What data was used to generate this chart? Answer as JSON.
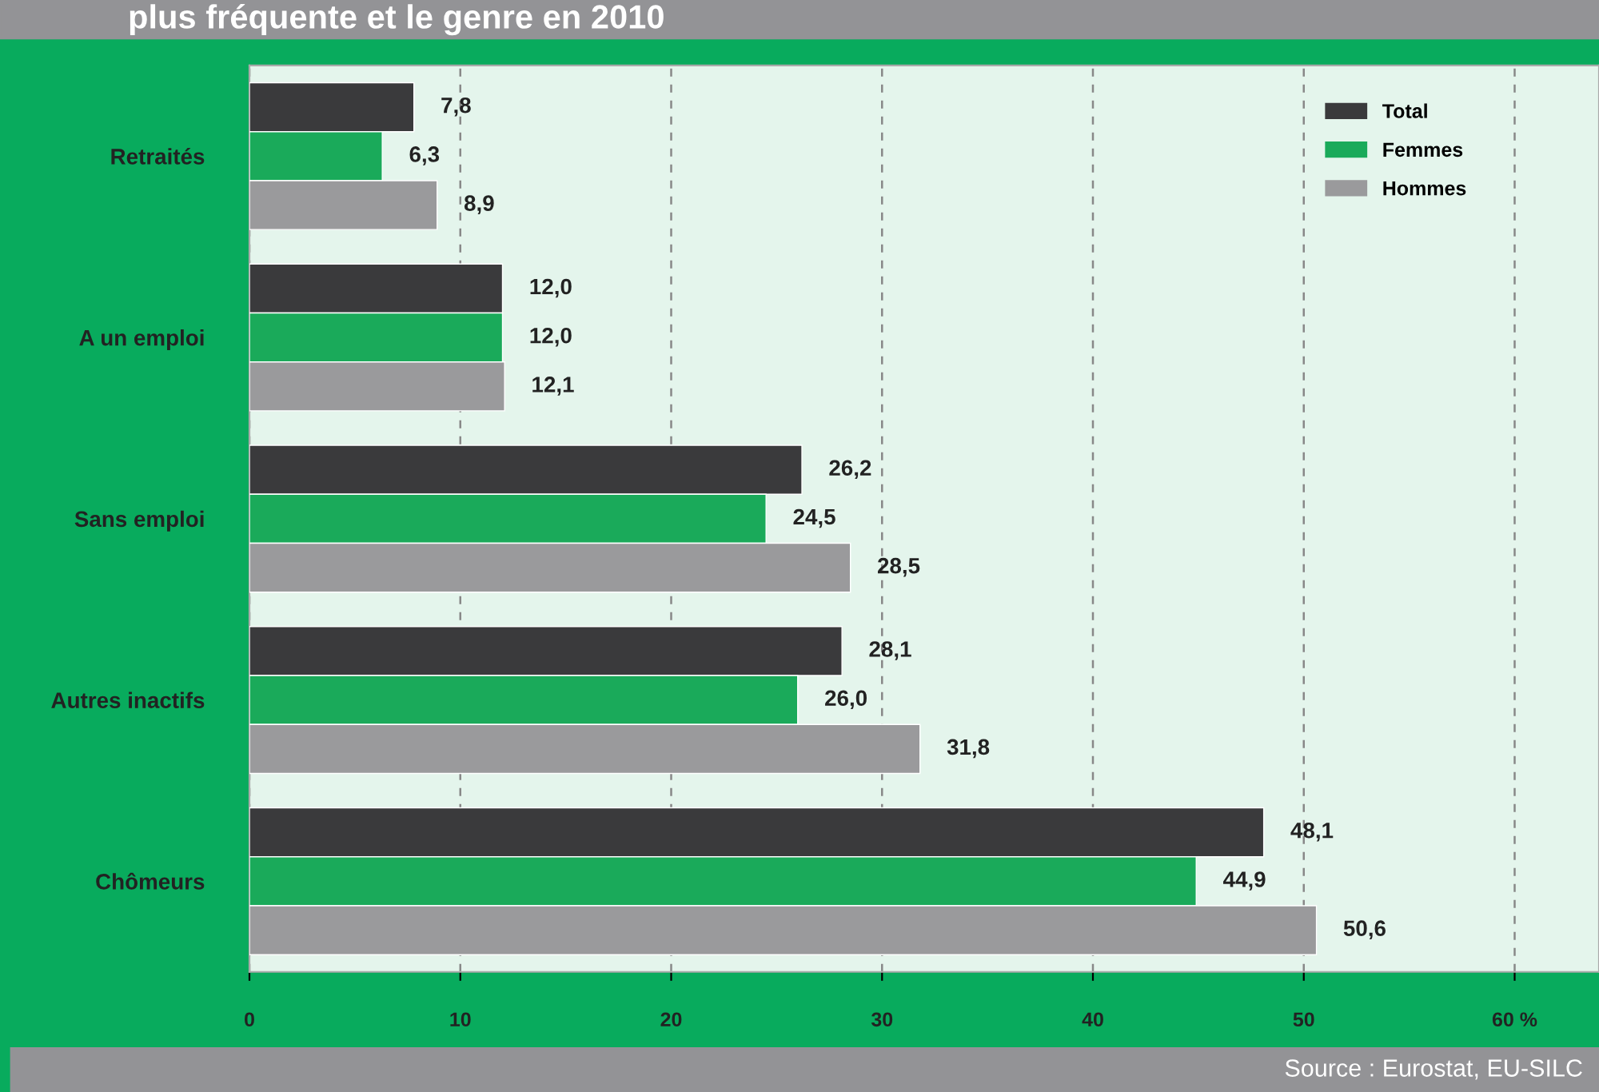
{
  "chart_data": {
    "type": "bar",
    "orientation": "horizontal",
    "title": "plus fréquente et le genre en 2010",
    "categories": [
      "Retraités",
      "A un emploi",
      "Sans emploi",
      "Autres inactifs",
      "Chômeurs"
    ],
    "series": [
      {
        "name": "Total",
        "color": "#3a3a3c",
        "values": [
          7.8,
          12.0,
          26.2,
          28.1,
          48.1
        ],
        "value_labels": [
          "7,8",
          "12,0",
          "26,2",
          "28,1",
          "48,1"
        ]
      },
      {
        "name": "Femmes",
        "color": "#1aaa5a",
        "values": [
          6.3,
          12.0,
          24.5,
          26.0,
          44.9
        ],
        "value_labels": [
          "6,3",
          "12,0",
          "24,5",
          "26,0",
          "44,9"
        ]
      },
      {
        "name": "Hommes",
        "color": "#9a9a9c",
        "values": [
          8.9,
          12.1,
          28.5,
          31.8,
          50.6
        ],
        "value_labels": [
          "8,9",
          "12,1",
          "28,5",
          "31,8",
          "50,6"
        ]
      }
    ],
    "xlim": [
      0,
      64
    ],
    "xticks": [
      0,
      10,
      20,
      30,
      40,
      50,
      {
        "value": 60,
        "label": "60 %"
      }
    ],
    "grid": "x",
    "legend": "top right",
    "annotations": [
      "Source : Eurostat, EU-SILC"
    ]
  }
}
